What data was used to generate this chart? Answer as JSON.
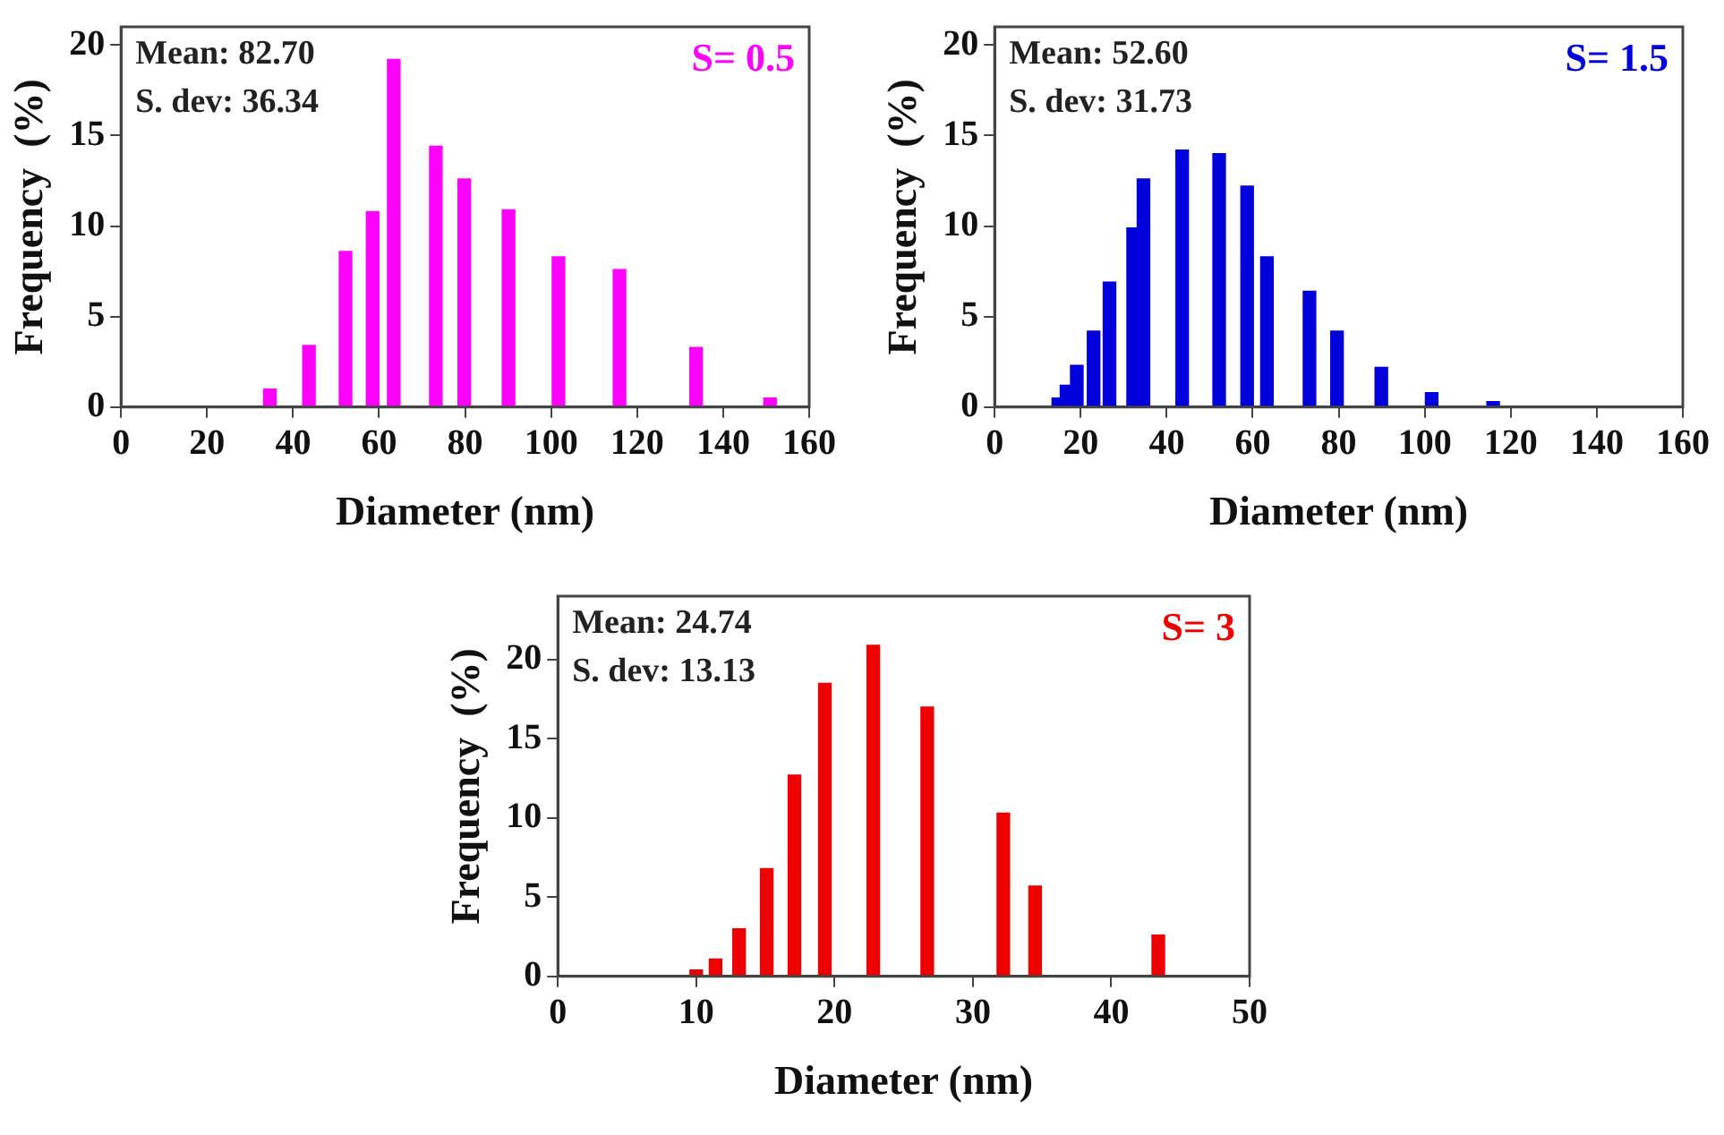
{
  "chart_data": [
    {
      "type": "bar",
      "xlabel": "Diameter (nm)",
      "ylabel": "Frequency  (%)",
      "annotations": [
        "Mean: 82.70",
        "S. dev: 36.34"
      ],
      "xlim": [
        0,
        160
      ],
      "xticks": [
        0,
        20,
        40,
        60,
        80,
        100,
        120,
        140,
        160
      ],
      "ylim": [
        0,
        21
      ],
      "yticks": [
        0,
        5,
        10,
        15,
        20
      ],
      "grid": false,
      "legend": false,
      "series": [
        {
          "name": "S= 0.5",
          "color": "#ff00ff",
          "x": [
            34.6,
            43.7,
            52.2,
            58.5,
            63.4,
            73.2,
            79.8,
            90.1,
            101.7,
            115.9,
            133.7,
            150.9
          ],
          "values": [
            1.0,
            3.4,
            8.6,
            10.8,
            19.2,
            14.4,
            12.6,
            10.9,
            8.3,
            7.6,
            3.3,
            0.5
          ]
        }
      ]
    },
    {
      "type": "bar",
      "xlabel": "Diameter (nm)",
      "ylabel": "Frequency  (%)",
      "annotations": [
        "Mean: 52.60",
        "S. dev: 31.73"
      ],
      "xlim": [
        0,
        160
      ],
      "xticks": [
        0,
        20,
        40,
        60,
        80,
        100,
        120,
        140,
        160
      ],
      "ylim": [
        0,
        21
      ],
      "yticks": [
        0,
        5,
        10,
        15,
        20
      ],
      "grid": false,
      "legend": false,
      "series": [
        {
          "name": "S= 1.5",
          "color": "#0000dd",
          "x": [
            14.8,
            16.7,
            19.1,
            23.0,
            26.7,
            32.2,
            34.6,
            43.6,
            52.2,
            58.7,
            63.3,
            73.2,
            79.6,
            89.9,
            101.6,
            115.9
          ],
          "values": [
            0.5,
            1.2,
            2.3,
            4.2,
            6.9,
            9.9,
            12.6,
            14.2,
            14.0,
            12.2,
            8.3,
            6.4,
            4.2,
            2.2,
            0.8,
            0.3
          ]
        }
      ]
    },
    {
      "type": "bar",
      "xlabel": "Diameter (nm)",
      "ylabel": "Frequency  (%)",
      "annotations": [
        "Mean: 24.74",
        "S. dev: 13.13"
      ],
      "xlim": [
        0,
        50
      ],
      "xticks": [
        0,
        10,
        20,
        30,
        40,
        50
      ],
      "ylim": [
        0,
        24
      ],
      "yticks": [
        0,
        5,
        10,
        15,
        20
      ],
      "grid": false,
      "legend": false,
      "series": [
        {
          "name": "S= 3",
          "color": "#ee0000",
          "x": [
            10.0,
            11.4,
            13.1,
            15.1,
            17.1,
            19.3,
            22.8,
            26.7,
            32.2,
            34.5,
            43.4
          ],
          "values": [
            0.4,
            1.1,
            3.0,
            6.8,
            12.7,
            18.5,
            20.9,
            17.0,
            10.3,
            5.7,
            2.6
          ]
        }
      ]
    }
  ]
}
